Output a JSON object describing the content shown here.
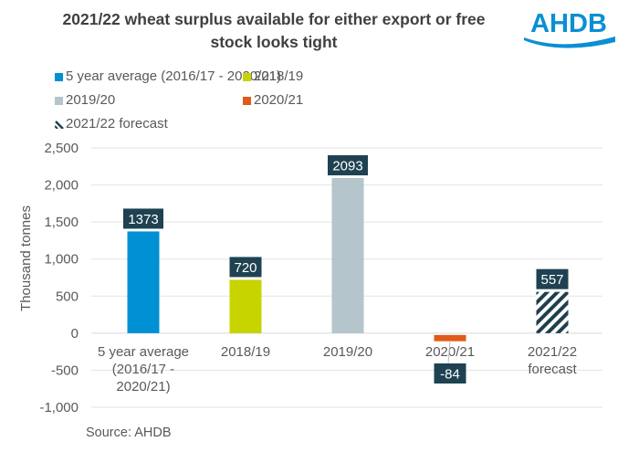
{
  "header": {
    "title_line1": "2021/22 wheat surplus available for either export or free",
    "title_line2": "stock looks tight",
    "logo_text": "AHDB",
    "logo_color": "#0a8fd4"
  },
  "legend": {
    "items": [
      {
        "label": "5 year average (2016/17 - 2020/21)",
        "color": "#0090d4",
        "pattern": "solid"
      },
      {
        "label": "2018/19",
        "color": "#c8d400",
        "pattern": "solid"
      },
      {
        "label": "2019/20",
        "color": "#b4c5cc",
        "pattern": "solid"
      },
      {
        "label": "2020/21",
        "color": "#e05a1a",
        "pattern": "solid"
      },
      {
        "label": "2021/22 forecast",
        "color": "#1f3f4f",
        "pattern": "diagonal-stripes"
      }
    ]
  },
  "footer": {
    "source": "Source: AHDB"
  },
  "chart_data": {
    "type": "bar",
    "title": "2021/22 wheat surplus available for either export or free stock looks tight",
    "xlabel": "",
    "ylabel": "Thousand tonnes",
    "ylim": [
      -1000,
      2500
    ],
    "yticks": [
      2500,
      2000,
      1500,
      1000,
      500,
      0,
      -500,
      -1000
    ],
    "ytick_labels": [
      "2,500",
      "2,000",
      "1,500",
      "1,000",
      "500",
      "0",
      "-500",
      "-1,000"
    ],
    "grid": true,
    "legend_position": "top",
    "categories": [
      [
        "5 year average",
        "(2016/17 -",
        "2020/21)"
      ],
      [
        "2018/19"
      ],
      [
        "2019/20"
      ],
      [
        "2020/21"
      ],
      [
        "2021/22",
        "forecast"
      ]
    ],
    "values": [
      1373,
      720,
      2093,
      -84,
      557
    ],
    "data_labels": [
      "1373",
      "720",
      "2093",
      "-84",
      "557"
    ],
    "colors": [
      "#0090d4",
      "#c8d400",
      "#b4c5cc",
      "#e05a1a",
      "#1f3f4f"
    ],
    "patterns": [
      "solid",
      "solid",
      "solid",
      "solid",
      "diagonal-stripes"
    ],
    "label_box_color": "#1f4252",
    "label_text_color": "#ffffff",
    "source": "Source: AHDB"
  }
}
